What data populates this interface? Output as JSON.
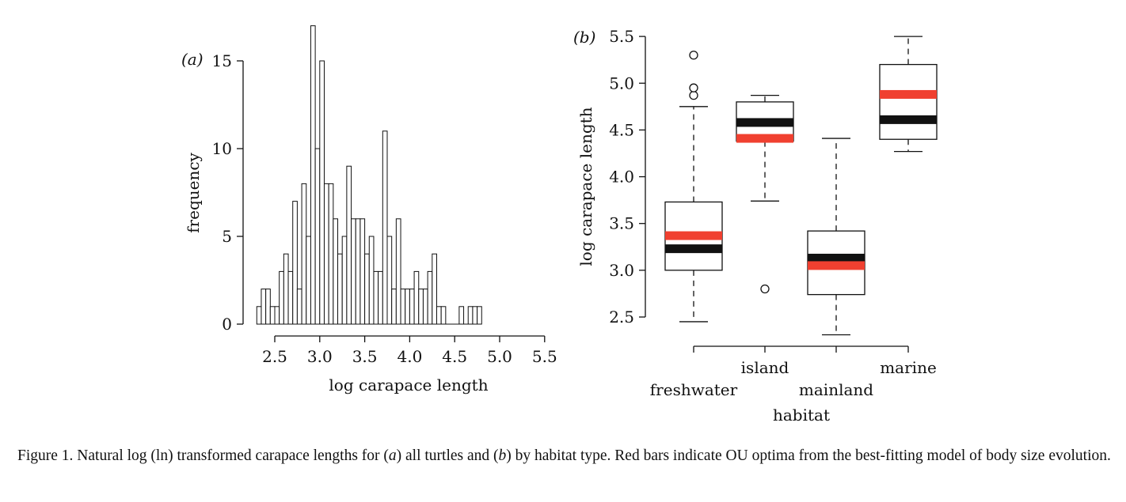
{
  "caption": {
    "lead": "Figure 1. Natural log (ln) transformed carapace lengths for (",
    "panel_a": "a",
    "mid": ") all turtles and (",
    "panel_b": "b",
    "tail": ") by habitat type. Red bars indicate OU optima from the best-fitting model of body size evolution."
  },
  "colors": {
    "red": "#f04030",
    "black": "#111111"
  },
  "chart_data": [
    {
      "type": "bar",
      "panel_label": "(a)",
      "xlabel": "log carapace length",
      "ylabel": "frequency",
      "xlim": [
        2.3,
        5.5
      ],
      "ylim": [
        0,
        17
      ],
      "xticks": [
        "2.5",
        "3.0",
        "3.5",
        "4.0",
        "4.5",
        "5.0",
        "5.5"
      ],
      "yticks": [
        "0",
        "5",
        "10",
        "15"
      ],
      "bin_start": 2.3,
      "bin_width": 0.05,
      "counts": [
        1,
        2,
        2,
        1,
        1,
        3,
        4,
        3,
        7,
        2,
        8,
        5,
        17,
        10,
        15,
        8,
        8,
        6,
        4,
        5,
        9,
        6,
        6,
        6,
        4,
        5,
        3,
        3,
        11,
        5,
        2,
        6,
        2,
        2,
        2,
        3,
        2,
        2,
        3,
        4,
        1,
        1,
        0,
        0,
        0,
        1,
        0,
        1,
        1,
        1
      ]
    },
    {
      "type": "box",
      "panel_label": "(b)",
      "xlabel": "habitat",
      "ylabel": "log carapace length",
      "ylim": [
        2.5,
        5.5
      ],
      "yticks": [
        "2.5",
        "3.0",
        "3.5",
        "4.0",
        "4.5",
        "5.0",
        "5.5"
      ],
      "legend_note": "Red bars indicate OU optima",
      "groups": [
        {
          "name": "freshwater",
          "whisker_low": 2.45,
          "q1": 3.0,
          "median": 3.23,
          "q3": 3.73,
          "whisker_high": 4.75,
          "outliers": [
            4.87,
            4.95,
            5.3
          ],
          "ou_optimum": 3.37
        },
        {
          "name": "island",
          "whisker_low": 3.74,
          "q1": 4.38,
          "median": 4.58,
          "q3": 4.8,
          "whisker_high": 4.87,
          "outliers": [
            2.8
          ],
          "ou_optimum": 4.41
        },
        {
          "name": "mainland",
          "whisker_low": 2.31,
          "q1": 2.74,
          "median": 3.13,
          "q3": 3.42,
          "whisker_high": 4.41,
          "outliers": [],
          "ou_optimum": 3.05
        },
        {
          "name": "marine",
          "whisker_low": 4.27,
          "q1": 4.4,
          "median": 4.61,
          "q3": 5.2,
          "whisker_high": 5.5,
          "outliers": [],
          "ou_optimum": 4.88
        }
      ]
    }
  ]
}
